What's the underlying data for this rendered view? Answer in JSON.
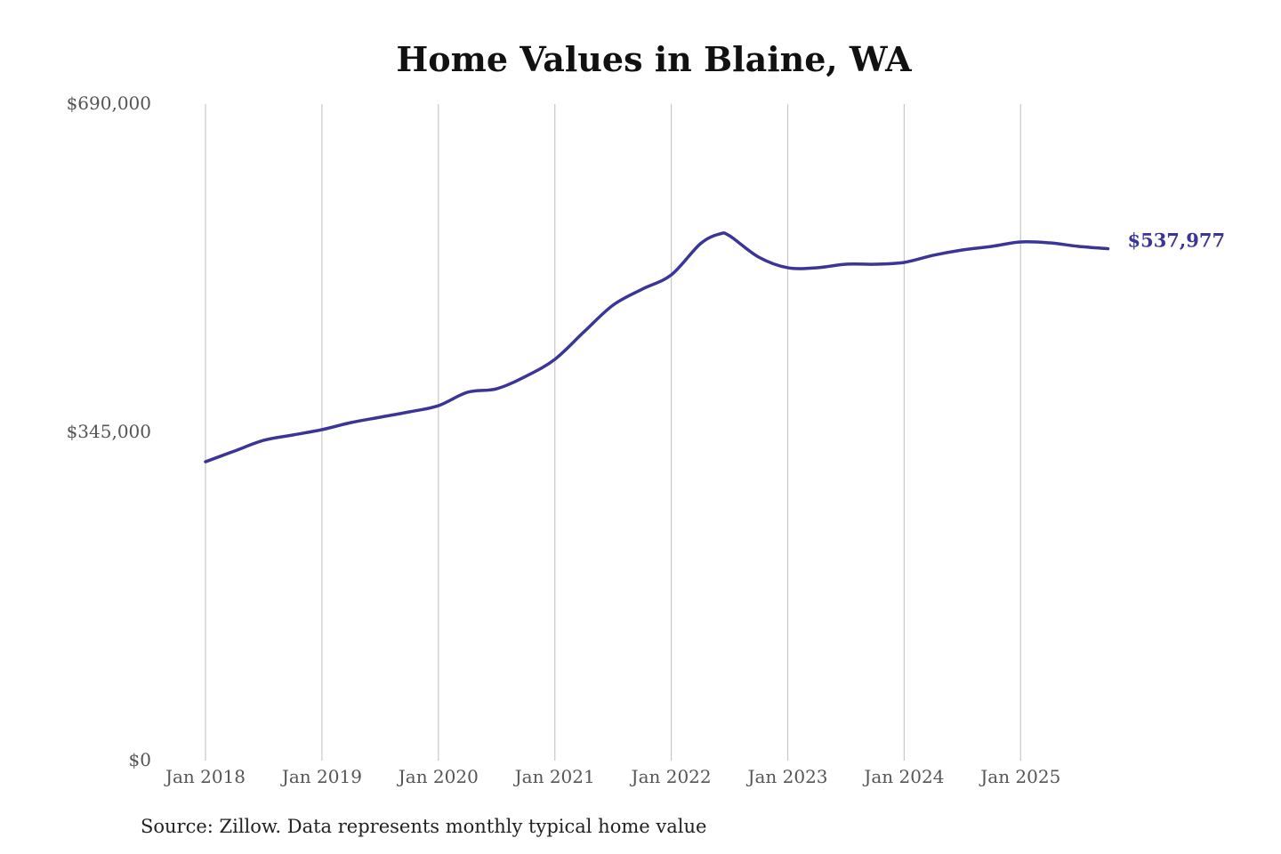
{
  "chart_data": {
    "type": "line",
    "title": "Home Values in Blaine, WA",
    "source": "Source: Zillow. Data represents monthly typical home value",
    "xlabel": "",
    "ylabel": "",
    "ylim": [
      0,
      690000
    ],
    "y_ticks": [
      0,
      345000,
      690000
    ],
    "y_tick_labels": [
      "$0",
      "$345,000",
      "$690,000"
    ],
    "x_tick_labels": [
      "Jan 2018",
      "Jan 2019",
      "Jan 2020",
      "Jan 2021",
      "Jan 2022",
      "Jan 2023",
      "Jan 2024",
      "Jan 2025"
    ],
    "x_ticks": [
      "2018-01",
      "2019-01",
      "2020-01",
      "2021-01",
      "2022-01",
      "2023-01",
      "2024-01",
      "2025-01"
    ],
    "grid": "vertical",
    "line_color": "#3a3596",
    "end_label": "$537,977",
    "series": [
      {
        "x": [
          "2018-01",
          "2018-04",
          "2018-07",
          "2018-10",
          "2019-01",
          "2019-04",
          "2019-07",
          "2019-10",
          "2020-01",
          "2020-04",
          "2020-07",
          "2020-10",
          "2021-01",
          "2021-04",
          "2021-07",
          "2021-10",
          "2022-01",
          "2022-04",
          "2022-06",
          "2022-07",
          "2022-10",
          "2023-01",
          "2023-04",
          "2023-07",
          "2023-10",
          "2024-01",
          "2024-04",
          "2024-07",
          "2024-10",
          "2025-01",
          "2025-04",
          "2025-07",
          "2025-10"
        ],
        "values": [
          314100,
          325400,
          336600,
          342200,
          347800,
          355300,
          360900,
          366500,
          373000,
          387100,
          390800,
          403900,
          421700,
          450600,
          478700,
          495500,
          510500,
          543200,
          553500,
          551600,
          529200,
          518000,
          518000,
          521700,
          521700,
          523600,
          531100,
          536700,
          540400,
          545100,
          544100,
          540400,
          537977
        ]
      }
    ]
  }
}
